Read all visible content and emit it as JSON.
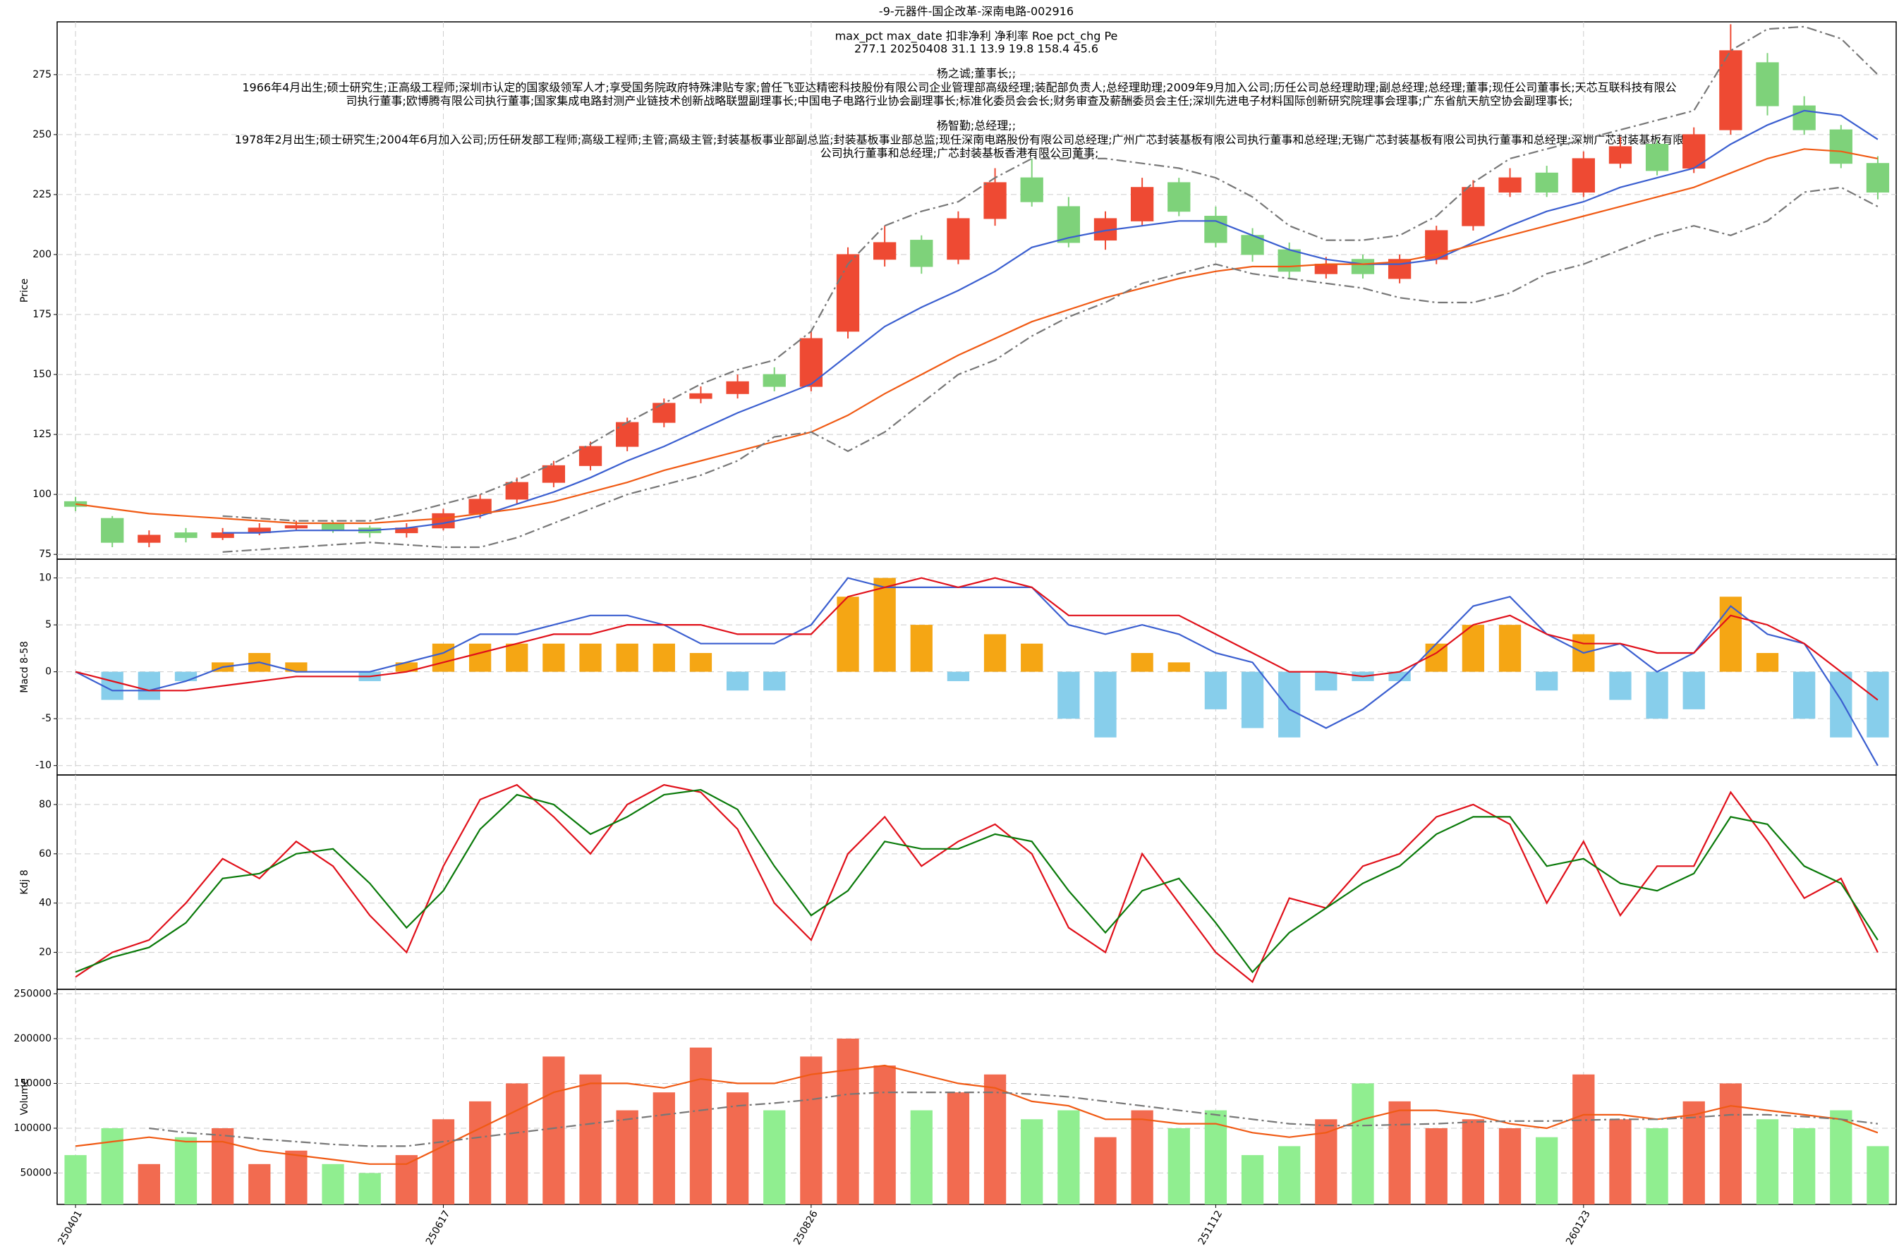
{
  "title": "-9-元器件-国企改革-深南电路-002916",
  "info_lines": [
    "max_pct  max_date  扣非净利  净利率  Roe  pct_chg  Pe",
    "277.1    20250408    31.1     13.9     19.8     158.4    45.6",
    "杨之诚;董事长;;",
    "1966年4月出生;硕士研究生;正高级工程师;深圳市认定的国家级领军人才;享受国务院政府特殊津贴专家;曾任飞亚达精密科技股份有限公司企业管理部高级经理;装配部负责人;总经理助理;2009年9月加入公司;历任公司总经理助理;副总经理;总经理;董事;现任公司董事长;天芯互联科技有限公",
    "司执行董事;欧博腾有限公司执行董事;国家集成电路封测产业链技术创新战略联盟副理事长;中国电子电路行业协会副理事长;标准化委员会会长;财务审查及薪酬委员会主任;深圳先进电子材料国际创新研究院理事会理事;广东省航天航空协会副理事长;",
    "杨智勤;总经理;;",
    "1978年2月出生;硕士研究生;2004年6月加入公司;历任研发部工程师;高级工程师;主管;高级主管;封装基板事业部副总监;封装基板事业部总监;现任深南电路股份有限公司总经理;广州广芯封装基板有限公司执行董事和总经理;无锡广芯封装基板有限公司执行董事和总经理;深圳广芯封装基板有限",
    "公司执行董事和总经理;广芯封装基板香港有限公司董事;"
  ],
  "chart_data": [
    {
      "type": "candlestick",
      "ylabel": "Price",
      "ylim": [
        73,
        297
      ],
      "yticks": [
        75,
        100,
        125,
        150,
        175,
        200,
        225,
        250,
        275
      ],
      "grid": true,
      "up_color": "#ee4a33",
      "down_color": "#7ed27a",
      "open": [
        97,
        90,
        80,
        84,
        82,
        84,
        86,
        88,
        86,
        84,
        86,
        92,
        98,
        105,
        112,
        120,
        130,
        140,
        142,
        150,
        145,
        168,
        198,
        206,
        198,
        215,
        232,
        220,
        206,
        214,
        230,
        216,
        208,
        202,
        192,
        198,
        190,
        198,
        212,
        226,
        234,
        226,
        238,
        246,
        236,
        252,
        280,
        262,
        252,
        238
      ],
      "high": [
        99,
        91,
        85,
        86,
        86,
        88,
        89,
        89,
        87,
        88,
        94,
        100,
        107,
        114,
        122,
        132,
        140,
        145,
        150,
        153,
        168,
        203,
        212,
        208,
        218,
        236,
        240,
        224,
        218,
        232,
        232,
        220,
        211,
        205,
        199,
        200,
        200,
        212,
        231,
        236,
        237,
        243,
        249,
        248,
        253,
        296,
        284,
        266,
        254,
        241
      ],
      "low": [
        93,
        78,
        78,
        80,
        81,
        83,
        85,
        84,
        82,
        82,
        85,
        90,
        96,
        103,
        110,
        118,
        128,
        138,
        140,
        143,
        143,
        165,
        195,
        192,
        196,
        212,
        220,
        203,
        202,
        212,
        216,
        203,
        197,
        190,
        190,
        190,
        188,
        196,
        210,
        224,
        224,
        224,
        236,
        233,
        234,
        250,
        258,
        250,
        236,
        223
      ],
      "close": [
        95,
        80,
        83,
        82,
        84,
        86,
        87,
        85,
        84,
        86,
        92,
        98,
        105,
        112,
        120,
        130,
        138,
        142,
        147,
        145,
        165,
        200,
        205,
        195,
        215,
        230,
        222,
        205,
        215,
        228,
        218,
        205,
        200,
        193,
        196,
        192,
        198,
        210,
        228,
        232,
        226,
        240,
        245,
        235,
        250,
        285,
        262,
        252,
        238,
        226
      ],
      "series": [
        {
          "color": "#3b5fd0",
          "style": "solid",
          "values": [
            null,
            null,
            null,
            null,
            84,
            84,
            85,
            85,
            85,
            86,
            88,
            91,
            96,
            101,
            107,
            114,
            120,
            127,
            134,
            140,
            146,
            158,
            170,
            178,
            185,
            193,
            203,
            207,
            210,
            212,
            214,
            214,
            208,
            202,
            198,
            196,
            196,
            198,
            205,
            212,
            218,
            222,
            228,
            232,
            236,
            246,
            254,
            260,
            258,
            248
          ]
        },
        {
          "color": "#f05a14",
          "style": "solid",
          "values": [
            96,
            94,
            92,
            91,
            90,
            89,
            88,
            88,
            88,
            89,
            90,
            92,
            94,
            97,
            101,
            105,
            110,
            114,
            118,
            122,
            126,
            133,
            142,
            150,
            158,
            165,
            172,
            177,
            182,
            186,
            190,
            193,
            195,
            195,
            196,
            196,
            197,
            200,
            204,
            208,
            212,
            216,
            220,
            224,
            228,
            234,
            240,
            244,
            243,
            240
          ]
        },
        {
          "color": "#777777",
          "style": "dashdot",
          "values": [
            null,
            null,
            null,
            null,
            91,
            90,
            89,
            89,
            89,
            92,
            96,
            100,
            106,
            113,
            121,
            130,
            138,
            146,
            152,
            156,
            168,
            196,
            212,
            218,
            222,
            232,
            240,
            240,
            240,
            238,
            236,
            232,
            224,
            212,
            206,
            206,
            208,
            216,
            230,
            240,
            244,
            248,
            252,
            256,
            260,
            285,
            294,
            295,
            290,
            275
          ]
        },
        {
          "color": "#777777",
          "style": "dashdot",
          "values": [
            null,
            null,
            null,
            null,
            76,
            77,
            78,
            79,
            80,
            79,
            78,
            78,
            82,
            88,
            94,
            100,
            104,
            108,
            114,
            124,
            126,
            118,
            126,
            138,
            150,
            156,
            166,
            174,
            180,
            188,
            192,
            196,
            192,
            190,
            188,
            186,
            182,
            180,
            180,
            184,
            192,
            196,
            202,
            208,
            212,
            208,
            214,
            226,
            228,
            220
          ]
        }
      ]
    },
    {
      "type": "bar",
      "ylabel": "Macd 8-58",
      "ylim": [
        -11,
        12
      ],
      "yticks": [
        -10,
        -5,
        0,
        5,
        10
      ],
      "grid": true,
      "up_color": "#f5a614",
      "down_color": "#87ceeb",
      "values": [
        0,
        -3,
        -3,
        -1,
        1,
        2,
        1,
        0,
        -1,
        1,
        3,
        3,
        3,
        3,
        3,
        3,
        3,
        2,
        -2,
        -2,
        0,
        8,
        10,
        5,
        -1,
        4,
        3,
        -5,
        -7,
        2,
        1,
        -4,
        -6,
        -7,
        -2,
        -1,
        -1,
        3,
        5,
        5,
        -2,
        4,
        -3,
        -5,
        -4,
        8,
        2,
        -5,
        -7,
        -7
      ],
      "series": [
        {
          "color": "#3b5fd0",
          "style": "solid",
          "values": [
            0,
            -2,
            -2,
            -1,
            0.5,
            1,
            0,
            0,
            0,
            1,
            2,
            4,
            4,
            5,
            6,
            6,
            5,
            3,
            3,
            3,
            5,
            10,
            9,
            9,
            9,
            9,
            9,
            5,
            4,
            5,
            4,
            2,
            1,
            -4,
            -6,
            -4,
            -1,
            3,
            7,
            8,
            4,
            2,
            3,
            0,
            2,
            7,
            4,
            3,
            -3,
            -10
          ]
        },
        {
          "color": "#e0101a",
          "style": "solid",
          "values": [
            0,
            -1,
            -2,
            -2,
            -1.5,
            -1,
            -0.5,
            -0.5,
            -0.5,
            0,
            1,
            2,
            3,
            4,
            4,
            5,
            5,
            5,
            4,
            4,
            4,
            8,
            9,
            10,
            9,
            10,
            9,
            6,
            6,
            6,
            6,
            4,
            2,
            0,
            0,
            -0.5,
            0,
            2,
            5,
            6,
            4,
            3,
            3,
            2,
            2,
            6,
            5,
            3,
            0,
            -3
          ]
        }
      ]
    },
    {
      "type": "line",
      "ylabel": "Kdj 8",
      "ylim": [
        5,
        92
      ],
      "yticks": [
        20,
        40,
        60,
        80
      ],
      "grid": true,
      "series": [
        {
          "color": "#e0101a",
          "style": "solid",
          "values": [
            10,
            20,
            25,
            40,
            58,
            50,
            65,
            55,
            35,
            20,
            55,
            82,
            88,
            75,
            60,
            80,
            88,
            85,
            70,
            40,
            25,
            60,
            75,
            55,
            65,
            72,
            60,
            30,
            20,
            60,
            40,
            20,
            8,
            42,
            38,
            55,
            60,
            75,
            80,
            72,
            40,
            65,
            35,
            55,
            55,
            85,
            65,
            42,
            50,
            20
          ]
        },
        {
          "color": "#0a7a0a",
          "style": "solid",
          "values": [
            12,
            18,
            22,
            32,
            50,
            52,
            60,
            62,
            48,
            30,
            45,
            70,
            84,
            80,
            68,
            75,
            84,
            86,
            78,
            55,
            35,
            45,
            65,
            62,
            62,
            68,
            65,
            45,
            28,
            45,
            50,
            32,
            12,
            28,
            38,
            48,
            55,
            68,
            75,
            75,
            55,
            58,
            48,
            45,
            52,
            75,
            72,
            55,
            48,
            25
          ]
        }
      ]
    },
    {
      "type": "volume",
      "ylabel": "Volume",
      "ylim": [
        15000,
        255000
      ],
      "yticks": [
        50000,
        100000,
        150000,
        200000,
        250000
      ],
      "grid": true,
      "up_color": "#f26b50",
      "down_color": "#90ee90",
      "xlim": [
        -0.5,
        49.5
      ],
      "xticks": [
        {
          "value": 0,
          "label": "250401"
        },
        {
          "value": 10,
          "label": "250617"
        },
        {
          "value": 20,
          "label": "250826"
        },
        {
          "value": 31,
          "label": "251112"
        },
        {
          "value": 41,
          "label": "260123"
        }
      ],
      "values": [
        70000,
        100000,
        60000,
        90000,
        100000,
        60000,
        75000,
        60000,
        50000,
        70000,
        110000,
        130000,
        150000,
        180000,
        160000,
        120000,
        140000,
        190000,
        140000,
        120000,
        180000,
        200000,
        170000,
        120000,
        140000,
        160000,
        110000,
        120000,
        90000,
        120000,
        100000,
        120000,
        70000,
        80000,
        110000,
        150000,
        130000,
        100000,
        110000,
        100000,
        90000,
        160000,
        110000,
        100000,
        130000,
        150000,
        110000,
        100000,
        120000,
        80000
      ],
      "series": [
        {
          "color": "#f05a14",
          "style": "solid",
          "values": [
            80000,
            85000,
            90000,
            85000,
            85000,
            75000,
            70000,
            65000,
            60000,
            60000,
            80000,
            100000,
            120000,
            140000,
            150000,
            150000,
            145000,
            155000,
            150000,
            150000,
            160000,
            165000,
            170000,
            160000,
            150000,
            145000,
            130000,
            125000,
            110000,
            110000,
            105000,
            105000,
            95000,
            90000,
            95000,
            110000,
            120000,
            120000,
            115000,
            105000,
            100000,
            115000,
            115000,
            110000,
            115000,
            125000,
            120000,
            115000,
            110000,
            95000
          ]
        },
        {
          "color": "#777777",
          "style": "dashdot",
          "values": [
            null,
            null,
            100000,
            95000,
            92000,
            88000,
            85000,
            82000,
            80000,
            80000,
            85000,
            90000,
            95000,
            100000,
            105000,
            110000,
            115000,
            120000,
            125000,
            128000,
            132000,
            138000,
            140000,
            140000,
            140000,
            140000,
            138000,
            135000,
            130000,
            125000,
            120000,
            115000,
            110000,
            105000,
            103000,
            103000,
            104000,
            105000,
            107000,
            108000,
            108000,
            109000,
            110000,
            110000,
            112000,
            115000,
            115000,
            113000,
            110000,
            105000
          ]
        }
      ]
    }
  ]
}
